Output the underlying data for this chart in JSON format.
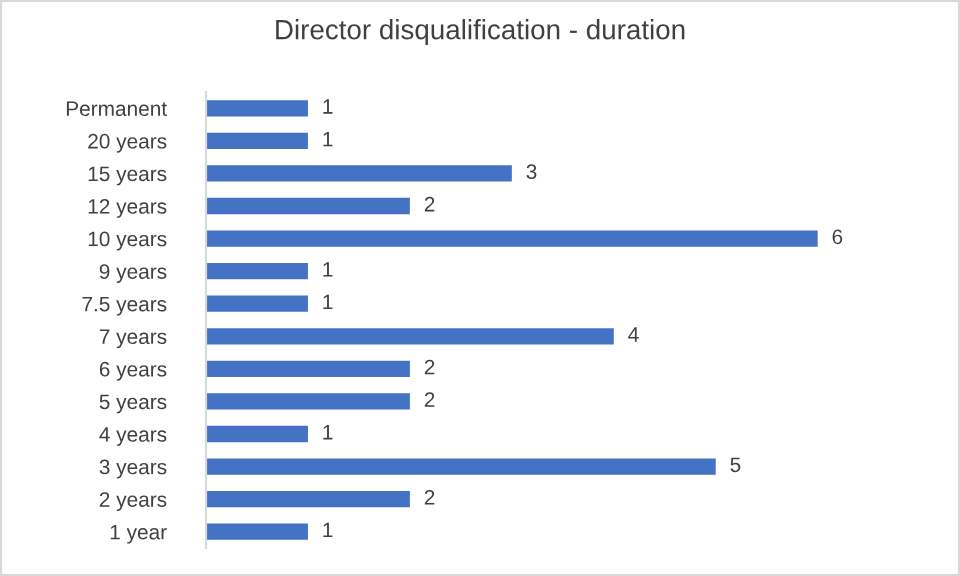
{
  "chart_data": {
    "type": "bar",
    "orientation": "horizontal",
    "title": "Director disqualification - duration",
    "categories": [
      "Permanent",
      "20 years",
      "15 years",
      "12 years",
      "10 years",
      "9 years",
      "7.5 years",
      "7 years",
      "6 years",
      "5 years",
      "4 years",
      "3 years",
      "2 years",
      "1 year"
    ],
    "values": [
      1,
      1,
      3,
      2,
      6,
      1,
      1,
      4,
      2,
      2,
      1,
      5,
      2,
      1
    ],
    "color": "#4472c4",
    "data_labels": true,
    "tick_labels": "y"
  }
}
